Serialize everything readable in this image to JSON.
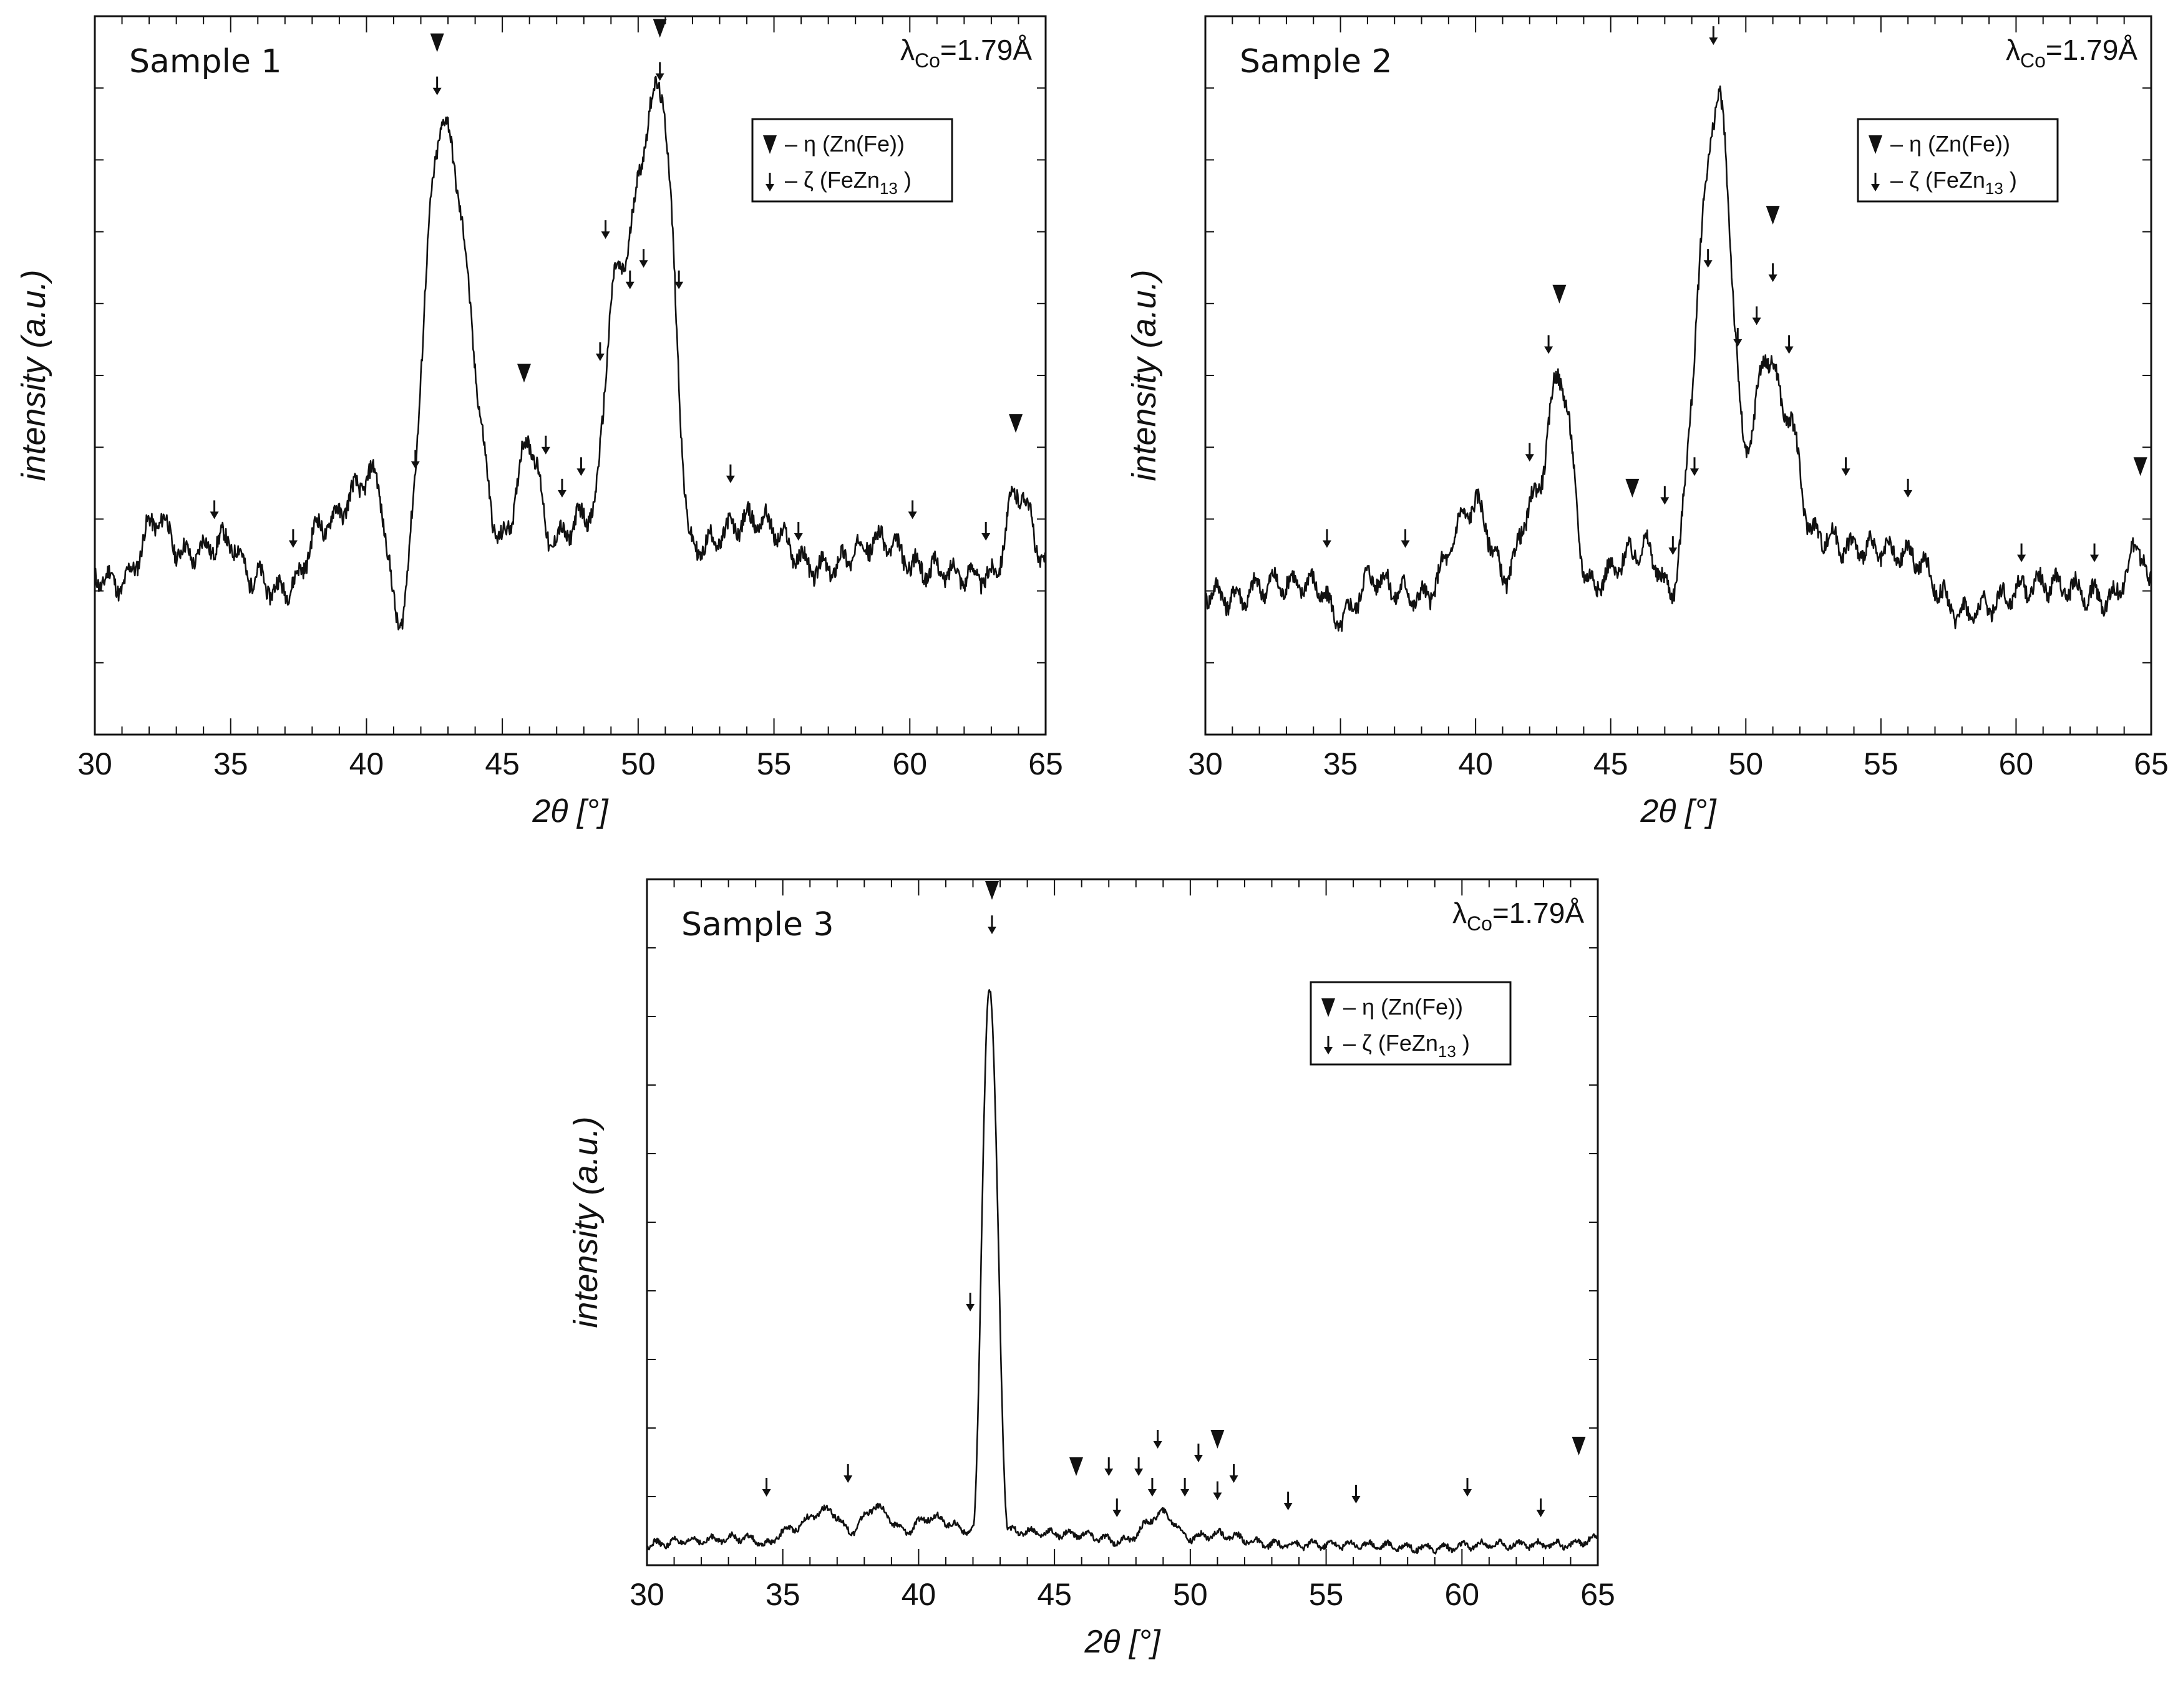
{
  "chart_data": [
    {
      "type": "line",
      "title": "Sample 1",
      "annotation": "λCo=1.79Å",
      "wavelength": {
        "symbol": "λ",
        "subscript": "Co",
        "value": "=1.79Å"
      },
      "xlabel": "2θ [°]",
      "ylabel": "intensity (a.u.)",
      "xlim": [
        30,
        65
      ],
      "ylim": [
        0,
        100
      ],
      "xticks": [
        30,
        35,
        40,
        45,
        50,
        55,
        60,
        65
      ],
      "grid": false,
      "legend_position": "top-right",
      "legend": [
        {
          "marker": "triangle-down",
          "label": "– η (Zn(Fe))"
        },
        {
          "marker": "arrow-down",
          "label": "– ζ (FeZn",
          "subscript": "13",
          "suffix": " )"
        }
      ],
      "peaks": [
        {
          "x": 30.0,
          "y": 22
        },
        {
          "x": 31.0,
          "y": 21
        },
        {
          "x": 32.3,
          "y": 30
        },
        {
          "x": 33.3,
          "y": 25
        },
        {
          "x": 34.9,
          "y": 27
        },
        {
          "x": 35.8,
          "y": 22
        },
        {
          "x": 36.8,
          "y": 20
        },
        {
          "x": 37.3,
          "y": 21
        },
        {
          "x": 38.3,
          "y": 29
        },
        {
          "x": 40.3,
          "y": 36
        },
        {
          "x": 41.2,
          "y": 16
        },
        {
          "x": 42.8,
          "y": 85
        },
        {
          "x": 45.0,
          "y": 27
        },
        {
          "x": 46.0,
          "y": 41
        },
        {
          "x": 46.8,
          "y": 27
        },
        {
          "x": 48.3,
          "y": 31
        },
        {
          "x": 49.2,
          "y": 64
        },
        {
          "x": 50.8,
          "y": 90
        },
        {
          "x": 52.0,
          "y": 26
        },
        {
          "x": 54.3,
          "y": 30
        },
        {
          "x": 56.7,
          "y": 23
        },
        {
          "x": 58.9,
          "y": 27
        },
        {
          "x": 60.5,
          "y": 23
        },
        {
          "x": 63.0,
          "y": 22
        },
        {
          "x": 64.0,
          "y": 34
        },
        {
          "x": 65.0,
          "y": 24
        }
      ],
      "marker_eta": [
        {
          "x": 42.6,
          "y": 95
        },
        {
          "x": 45.8,
          "y": 49
        },
        {
          "x": 50.8,
          "y": 97
        },
        {
          "x": 63.9,
          "y": 42
        }
      ],
      "marker_zeta": [
        {
          "x": 34.4,
          "y": 30
        },
        {
          "x": 37.3,
          "y": 26
        },
        {
          "x": 41.8,
          "y": 37
        },
        {
          "x": 42.6,
          "y": 89
        },
        {
          "x": 46.6,
          "y": 39
        },
        {
          "x": 47.2,
          "y": 33
        },
        {
          "x": 47.9,
          "y": 36
        },
        {
          "x": 48.6,
          "y": 52
        },
        {
          "x": 48.8,
          "y": 69
        },
        {
          "x": 49.7,
          "y": 62
        },
        {
          "x": 50.2,
          "y": 65
        },
        {
          "x": 50.8,
          "y": 91
        },
        {
          "x": 51.5,
          "y": 62
        },
        {
          "x": 53.4,
          "y": 35
        },
        {
          "x": 55.9,
          "y": 27
        },
        {
          "x": 60.1,
          "y": 30
        },
        {
          "x": 62.8,
          "y": 27
        }
      ]
    },
    {
      "type": "line",
      "title": "Sample 2",
      "annotation": "λCo=1.79Å",
      "wavelength": {
        "symbol": "λ",
        "subscript": "Co",
        "value": "=1.79Å"
      },
      "xlabel": "2θ [°]",
      "ylabel": "intensity (a.u.)",
      "xlim": [
        30,
        65
      ],
      "ylim": [
        0,
        100
      ],
      "xticks": [
        30,
        35,
        40,
        45,
        50,
        55,
        60,
        65
      ],
      "grid": false,
      "legend_position": "top-right",
      "legend": [
        {
          "marker": "triangle-down",
          "label": "– η (Zn(Fe))"
        },
        {
          "marker": "arrow-down",
          "label": "– ζ (FeZn",
          "subscript": "13",
          "suffix": " )"
        }
      ],
      "peaks": [
        {
          "x": 30.0,
          "y": 20
        },
        {
          "x": 31.0,
          "y": 19
        },
        {
          "x": 32.5,
          "y": 21
        },
        {
          "x": 34.0,
          "y": 21
        },
        {
          "x": 35.0,
          "y": 16
        },
        {
          "x": 36.2,
          "y": 22
        },
        {
          "x": 37.2,
          "y": 20
        },
        {
          "x": 38.0,
          "y": 19
        },
        {
          "x": 40.0,
          "y": 32
        },
        {
          "x": 41.1,
          "y": 22
        },
        {
          "x": 42.2,
          "y": 33
        },
        {
          "x": 43.1,
          "y": 50
        },
        {
          "x": 44.2,
          "y": 21
        },
        {
          "x": 46.3,
          "y": 26
        },
        {
          "x": 47.2,
          "y": 20
        },
        {
          "x": 49.0,
          "y": 88
        },
        {
          "x": 50.0,
          "y": 40
        },
        {
          "x": 50.8,
          "y": 53
        },
        {
          "x": 51.5,
          "y": 45
        },
        {
          "x": 52.5,
          "y": 28
        },
        {
          "x": 54.0,
          "y": 26
        },
        {
          "x": 56.0,
          "y": 25
        },
        {
          "x": 58.0,
          "y": 17
        },
        {
          "x": 61.0,
          "y": 21
        },
        {
          "x": 63.5,
          "y": 19
        },
        {
          "x": 64.6,
          "y": 26
        },
        {
          "x": 65.0,
          "y": 20
        }
      ],
      "marker_eta": [
        {
          "x": 43.1,
          "y": 60
        },
        {
          "x": 45.8,
          "y": 33
        },
        {
          "x": 51.0,
          "y": 71
        },
        {
          "x": 64.6,
          "y": 36
        }
      ],
      "marker_zeta": [
        {
          "x": 34.5,
          "y": 26
        },
        {
          "x": 37.4,
          "y": 26
        },
        {
          "x": 42.0,
          "y": 38
        },
        {
          "x": 42.7,
          "y": 53
        },
        {
          "x": 47.0,
          "y": 32
        },
        {
          "x": 47.3,
          "y": 25
        },
        {
          "x": 48.1,
          "y": 36
        },
        {
          "x": 48.6,
          "y": 65
        },
        {
          "x": 48.8,
          "y": 96
        },
        {
          "x": 49.7,
          "y": 54
        },
        {
          "x": 50.4,
          "y": 57
        },
        {
          "x": 51.0,
          "y": 63
        },
        {
          "x": 51.6,
          "y": 53
        },
        {
          "x": 53.7,
          "y": 36
        },
        {
          "x": 56.0,
          "y": 33
        },
        {
          "x": 60.2,
          "y": 24
        },
        {
          "x": 62.9,
          "y": 24
        }
      ]
    },
    {
      "type": "line",
      "title": "Sample 3",
      "annotation": "λCo=1.79Å",
      "wavelength": {
        "symbol": "λ",
        "subscript": "Co",
        "value": "=1.79Å"
      },
      "xlabel": "2θ [°]",
      "ylabel": "intensity (a.u.)",
      "xlim": [
        30,
        65
      ],
      "ylim": [
        0,
        100
      ],
      "xticks": [
        30,
        35,
        40,
        45,
        50,
        55,
        60,
        65
      ],
      "grid": false,
      "legend_position": "top-right",
      "legend": [
        {
          "marker": "triangle-down",
          "label": "– η (Zn(Fe))"
        },
        {
          "marker": "arrow-down",
          "label": "– ζ (FeZn",
          "subscript": "13",
          "suffix": " )"
        }
      ],
      "peaks": [
        {
          "x": 30.0,
          "y": 3
        },
        {
          "x": 31.5,
          "y": 3.5
        },
        {
          "x": 33.5,
          "y": 4
        },
        {
          "x": 34.5,
          "y": 3
        },
        {
          "x": 35.0,
          "y": 5
        },
        {
          "x": 36.7,
          "y": 8
        },
        {
          "x": 37.5,
          "y": 5
        },
        {
          "x": 38.4,
          "y": 8.5
        },
        {
          "x": 39.5,
          "y": 5
        },
        {
          "x": 40.4,
          "y": 7
        },
        {
          "x": 42.0,
          "y": 5
        },
        {
          "x": 42.6,
          "y": 84
        },
        {
          "x": 43.3,
          "y": 5
        },
        {
          "x": 45.8,
          "y": 4.5
        },
        {
          "x": 47.5,
          "y": 3.5
        },
        {
          "x": 49.0,
          "y": 7.5
        },
        {
          "x": 50.0,
          "y": 4
        },
        {
          "x": 51.0,
          "y": 4.5
        },
        {
          "x": 53.0,
          "y": 3
        },
        {
          "x": 56.0,
          "y": 3
        },
        {
          "x": 59.0,
          "y": 2.5
        },
        {
          "x": 61.0,
          "y": 3
        },
        {
          "x": 64.0,
          "y": 3
        },
        {
          "x": 65.0,
          "y": 4
        }
      ],
      "marker_eta": [
        {
          "x": 42.7,
          "y": 97
        },
        {
          "x": 45.8,
          "y": 13
        },
        {
          "x": 51.0,
          "y": 17
        },
        {
          "x": 64.3,
          "y": 16
        }
      ],
      "marker_zeta": [
        {
          "x": 34.4,
          "y": 10
        },
        {
          "x": 37.4,
          "y": 12
        },
        {
          "x": 41.9,
          "y": 37
        },
        {
          "x": 42.7,
          "y": 92
        },
        {
          "x": 47.0,
          "y": 13
        },
        {
          "x": 47.3,
          "y": 7
        },
        {
          "x": 48.1,
          "y": 13
        },
        {
          "x": 48.6,
          "y": 10
        },
        {
          "x": 48.8,
          "y": 17
        },
        {
          "x": 49.8,
          "y": 10
        },
        {
          "x": 50.3,
          "y": 15
        },
        {
          "x": 51.0,
          "y": 9.5
        },
        {
          "x": 51.6,
          "y": 12
        },
        {
          "x": 53.6,
          "y": 8
        },
        {
          "x": 56.1,
          "y": 9
        },
        {
          "x": 60.2,
          "y": 10
        },
        {
          "x": 62.9,
          "y": 7
        }
      ]
    }
  ]
}
